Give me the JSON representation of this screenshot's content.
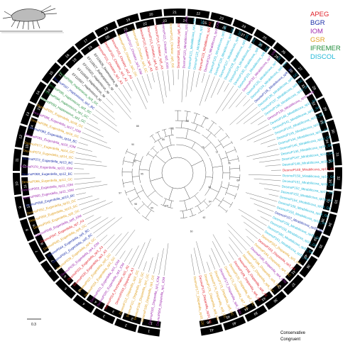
{
  "legend": [
    {
      "label": "APEG",
      "color": "#e0202a"
    },
    {
      "label": "BGR",
      "color": "#1b2fa8"
    },
    {
      "label": "IOM",
      "color": "#a02cb0"
    },
    {
      "label": "GSR",
      "color": "#e0a020"
    },
    {
      "label": "IFREMER",
      "color": "#1f8c3a"
    },
    {
      "label": "DISCOL",
      "color": "#20b8d8"
    }
  ],
  "rings": {
    "outer_label": "Conservative",
    "inner_label": "Congruent"
  },
  "scale_bar": {
    "label": "0.3"
  },
  "clusters": [
    {
      "name": "Mirabilicoxa",
      "color": "#20b8d8"
    },
    {
      "name": "Eugerdella",
      "color": "#1b2fa8"
    },
    {
      "name": "Disparella",
      "color": "#a02cb0"
    },
    {
      "name": "Chelator",
      "color": "#e0202a"
    },
    {
      "name": "Haploniscus",
      "color": "#1f8c3a"
    }
  ],
  "leaves": [
    "DesmoP004_Disparella_sp1_IOM",
    "DesmoP005_Disparella_sp1_IOM",
    "DesmoP106_Disparella_sp1_GC",
    "DesmoP108_Disparella_sp1_GC",
    "DesmoP111_Disparella_sp2_GC",
    "DesmoP112_Disparella_sp2_GC",
    "DesmoP033_Disparella_A3",
    "DesmoP014_Prochelator_sp1_A3",
    "DesmoP020_Eugerdella_sp1_IOM",
    "DesmoP021_Eugerdella_sp1_IOM",
    "DesmoP024_Eugerdella_sp2_GC",
    "DesmoP027_Eugerdella_sp2_GC",
    "DesmoP030_Eugerdella_sp3_A3",
    "DesmoP031_Eugerdella_sp3_A3",
    "DesmoP035_Eugerdella_sp4_IOM",
    "DesmoP039_Eugerdella_sp4_GC",
    "DesmoP041_Eugerdella_sp5_BC",
    "DesmoP044_Eugerdella_sp5_BC",
    "DesmoP045_Eugerdella_sp6_GC",
    "DesmoP047_Eugerdella_sp7_A3",
    "DesmoP048_Eugerdella_sp8_IOM",
    "DesmoP049_Eugerdella_sp9_GC",
    "DesmoP050_Eugerdella_sp10_GC",
    "DesmoP052_Eugerdella_sp10_GC",
    "DesmoP058_Eugerdella_sp10_BC",
    "DesmoP060_Eugerdella_sp11_IOM",
    "DesmoP063_Eugerdella_sp11_IOM",
    "DesmoP066_Eugerdella_sp12_GC",
    "DesmoP068_Eugerdella_sp12_BC",
    "DesmoP070_Eugerdella_sp13_IOM",
    "DesmoP072_Eugerdella_sp13_BC",
    "DesmoP073_Eugerdella_sp14_GC",
    "DesmoP077_Eugerdella_sp14_GC",
    "DesmoP081_Eugerdella_sp15_IOM",
    "DesmoP083_Eugerdella_sp16_BC",
    "DesmoP086_Eugerdella_sp16_GC",
    "DesmoP088_Eugerdella_sp17_IOM",
    "DesmoP091_Eugerdella_sp18_GC",
    "DesmoP093_Haploniscus_sp1_GC",
    "DesmoP094_Haploniscus_sp1_GC",
    "DesmoP095_Haploniscus_sp2_GC",
    "DesmoP097_Haploniscus_sp2_BC",
    "DesmoP098_Haploniscus_sp3_GC",
    "EF116507_Haploniscus_sp",
    "EF116509_Haploniscus_sp",
    "EF116520_Haploniscus_sp",
    "EF116527_Bathyopsurus_sp",
    "EF116535_Desmosoma_sp",
    "DesmoP101_Chelator_sp1_A3",
    "DesmoP102_Chelator_sp1_A3",
    "DesmoP103_Chelator_sp2_A3",
    "DesmoP104_Chelator_sp2_GC",
    "DesmoP107_Chelator_sp3_IOM",
    "DesmoP109_Chelator_sp3_GC",
    "DesmoP110_Chelator_sp4_A3",
    "DesmoP113_Chelator_sp4_A3",
    "DesmoP114_Chelator_sp5_A3",
    "DesmoP115_Chelator_sp5_IOM",
    "DesmoP116_Chelator_sp6_GC",
    "DesmoP118_Chelator_sp6_A3",
    "DesmoP120_Mirabilicoxa_sp1_IOM",
    "DesmoP121_Mirabilicoxa_sp1_GC",
    "DesmoP122_Mirabilicoxa_sp2_GC",
    "DesmoP123_Mirabilicoxa_sp2_A3",
    "DesmoP124_Mirabilicoxa_sp3_IOM",
    "DesmoP125_Mirabilicoxa_sp3_GC",
    "DesmoP126_Mirabilicoxa_sp4_GC",
    "DesmoP127_Mirabilicoxa_sp4_GC",
    "DesmoP128_Mirabilicoxa_sp5_GC",
    "DesmoP129_Mirabilicoxa_sp5_GC",
    "DesmoP130_Mirabilicoxa_sp6_GC",
    "DesmoP131_Mirabilicoxa_sp6_GC",
    "DesmoP132_Mirabilicoxa_sp7_IOM",
    "DesmoP133_Mirabilicoxa_sp7_GC",
    "DesmoP134_Mirabilicoxa_sp8_GC",
    "DesmoP135_Mirabilicoxa_sp8_BC",
    "DesmoP136_Mirabilicoxa_sp9_GC",
    "DesmoP137_Mirabilicoxa_sp9_GC",
    "DesmoP138_Mirabilicoxa_sp10_GC",
    "DesmoP139_Mirabilicoxa_sp10_IOM",
    "DesmoP140_Mirabilicoxa_sp11_GC",
    "DesmoP141_Mirabilicoxa_sp11_GC",
    "DesmoP142_Mirabilicoxa_sp12_GC",
    "DesmoP143_Mirabilicoxa_sp12_GC",
    "DesmoP144_Mirabilicoxa_sp13_GC",
    "DesmoP145_Mirabilicoxa_sp13_GC",
    "DesmoP146_Mirabilicoxa_sp14_GC",
    "DesmoP147_Mirabilicoxa_sp14_GC",
    "DesmoP148_Mirabilicoxa_sp15_GC",
    "DesmoP149_Mirabilicoxa_sp15_A3",
    "DesmoP150_Mirabilicoxa_sp16_GC",
    "DesmoP151_Mirabilicoxa_sp16_GC",
    "DesmoP152_Mirabilicoxa_sp17_GC",
    "DesmoP153_Mirabilicoxa_sp18_GC",
    "DesmoP154_Mirabilicoxa_sp18_GC",
    "DesmoP155_Mirabilicoxa_sp19_GC",
    "DesmoP156_Mirabilicoxa_sp19_GC",
    "DesmoP157_Mirabilicoxa_sp20_BC",
    "DesmoP158_Mirabilicoxa_sp20_GC",
    "DesmoP159_Mirabilicoxa_sp21_GC",
    "DesmoP160_Mirabilicoxa_sp22_GC",
    "DesmoP161_Mirabilicoxa_sp22_GC",
    "DesmoP162_Disparella_sp3_GC",
    "DesmoP163_Disparella_sp3_A3",
    "DesmoP164_Disparella_sp4_GC",
    "DesmoP165_Disparella_sp4_IOM",
    "DesmoP166_Disparella_sp5_GC",
    "DesmoP167_Disparella_sp5_GC",
    "DesmoP168_Disparella_sp6_A3",
    "DesmoP169_Disparella_sp6_A3",
    "DesmoP170_Disparella_sp7_GC",
    "DesmoP171_Disparella_sp7_GC",
    "DesmoP172_Disparella_sp8_IOM",
    "DesmoP173_Disparella_sp8_GC",
    "DesmoP174_Disparella_sp9_GC",
    "DesmoP175_Disparella_sp9_GC",
    "DesmoP176_Disparella_sp10_A3",
    "DesmoP177_Disparella_sp10_GC"
  ],
  "outer_segments": [
    "1",
    "2",
    "3",
    "4",
    "5",
    "6",
    "7",
    "8",
    "9",
    "10",
    "11",
    "12",
    "13",
    "14",
    "15",
    "16",
    "17",
    "18",
    "19",
    "20",
    "21",
    "22",
    "23",
    "24",
    "25",
    "26",
    "27",
    "28",
    "29",
    "30",
    "31",
    "32",
    "33",
    "34",
    "35",
    "36",
    "37",
    "38",
    "39",
    "40",
    "41"
  ],
  "inner_segments": [
    "1",
    "2",
    "3",
    "4",
    "5",
    "6",
    "7",
    "8",
    "9",
    "10",
    "11",
    "12",
    "13",
    "14",
    "15",
    "16",
    "17",
    "18",
    "19",
    "20",
    "21",
    "22",
    "23",
    "24",
    "25",
    "26",
    "27",
    "28",
    "29",
    "30",
    "31",
    "32",
    "33",
    "34",
    "35",
    "36",
    "37",
    "38",
    "39",
    "40",
    "41",
    "42",
    "43",
    "44",
    "45",
    "46"
  ],
  "bootstrap_labels": [
    "100",
    "99",
    "98",
    "97",
    "95",
    "92",
    "90",
    "88",
    "85",
    "82",
    "80",
    "77",
    "75",
    "72",
    "70",
    "68",
    "66",
    "64",
    "62",
    "60"
  ]
}
